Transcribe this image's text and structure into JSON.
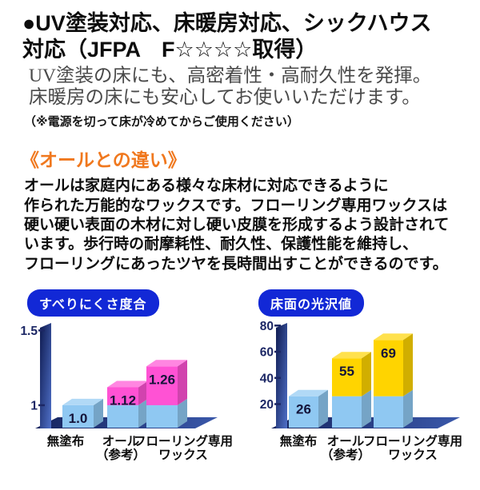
{
  "page": {
    "heading": [
      "●UV塗装対応、床暖房対応、シックハウス",
      "対応（JFPA　F☆☆☆☆取得）"
    ],
    "lede": [
      "UV塗装の床にも、高密着性・高耐久性を発揮。",
      "床暖房の床にも安心してお使いいただけます。"
    ],
    "note": "（※電源を切って床が冷めてからご使用ください）",
    "section_title": "《オールとの違い》",
    "body": [
      "オールは家庭内にある様々な床材に対応できるように",
      "作られた万能的なワックスです。フローリング専用ワックスは",
      "硬い硬い表面の木材に対し硬い皮膜を形成するよう設計されて",
      "います。歩行時の耐摩耗性、耐久性、保護性能を維持し、",
      "フローリングにあったツヤを長時間出すことができるのです。"
    ]
  },
  "colors": {
    "heading_text": "#0d0d0d",
    "lede_text": "#4a4a4a",
    "section_title": "#f0781e",
    "chart_title_pill": "#1228d6",
    "axis_navy": "#1c2765",
    "value_label": "#14143a"
  },
  "chart_data": [
    {
      "type": "bar",
      "title": "すべりにくさ度合",
      "categories": [
        "無塗布",
        "オール\n（参考）",
        "フローリング専用\nワックス"
      ],
      "values": [
        1.0,
        1.12,
        1.26
      ],
      "value_labels": [
        "1.0",
        "1.12",
        "1.26"
      ],
      "base_value": 1.0,
      "yticks": [
        1.5,
        1
      ],
      "ylim": [
        0.85,
        1.55
      ],
      "base_color": "#8fc8f2",
      "accent_color": "#ff52d4",
      "style": "3d-stacked",
      "grid": false,
      "legend": false
    },
    {
      "type": "bar",
      "title": "床面の光沢値",
      "categories": [
        "無塗布",
        "オール\n（参考）",
        "フローリング専用\nワックス"
      ],
      "values": [
        26,
        55,
        69
      ],
      "value_labels": [
        "26",
        "55",
        "69"
      ],
      "base_value": 26,
      "yticks": [
        80,
        60,
        40,
        20
      ],
      "ylim": [
        2,
        82
      ],
      "base_color": "#8fc8f2",
      "accent_color": "#ffd400",
      "style": "3d-stacked",
      "grid": false,
      "legend": false
    }
  ]
}
